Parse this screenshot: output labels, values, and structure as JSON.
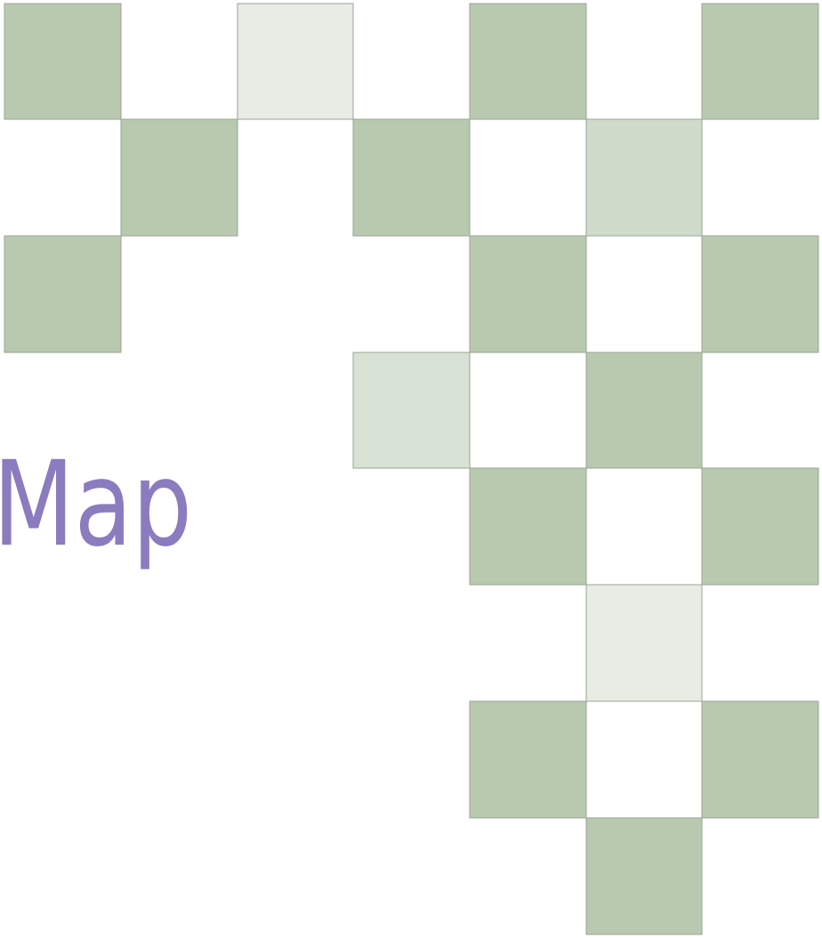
{
  "title": "Map"
}
